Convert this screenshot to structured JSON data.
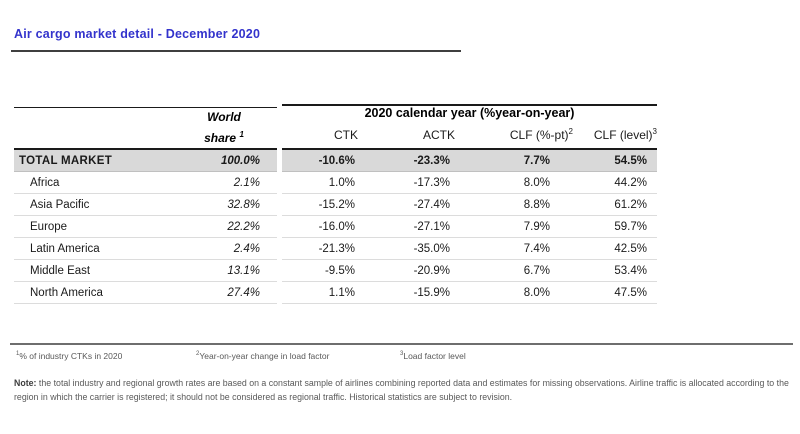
{
  "title": "Air cargo market detail - December 2020",
  "colors": {
    "title_blue": "#3333cc",
    "total_row_bg": "#d9d9d9"
  },
  "table": {
    "world_share_header": {
      "line1": "World",
      "line2": "share",
      "sup": "1"
    },
    "group_header": "2020 calendar year (%year-on-year)",
    "columns": [
      {
        "label": "CTK",
        "sup": ""
      },
      {
        "label": "ACTK",
        "sup": ""
      },
      {
        "label": "CLF (%-pt)",
        "sup": "2"
      },
      {
        "label": "CLF (level)",
        "sup": "3"
      }
    ],
    "rows": [
      {
        "label": "TOTAL MARKET",
        "world_share": "100.0%",
        "ctk": "-10.6%",
        "actk": "-23.3%",
        "clf_pt": "7.7%",
        "clf_level": "54.5%"
      },
      {
        "label": "Africa",
        "world_share": "2.1%",
        "ctk": "1.0%",
        "actk": "-17.3%",
        "clf_pt": "8.0%",
        "clf_level": "44.2%"
      },
      {
        "label": "Asia Pacific",
        "world_share": "32.8%",
        "ctk": "-15.2%",
        "actk": "-27.4%",
        "clf_pt": "8.8%",
        "clf_level": "61.2%"
      },
      {
        "label": "Europe",
        "world_share": "22.2%",
        "ctk": "-16.0%",
        "actk": "-27.1%",
        "clf_pt": "7.9%",
        "clf_level": "59.7%"
      },
      {
        "label": "Latin America",
        "world_share": "2.4%",
        "ctk": "-21.3%",
        "actk": "-35.0%",
        "clf_pt": "7.4%",
        "clf_level": "42.5%"
      },
      {
        "label": "Middle East",
        "world_share": "13.1%",
        "ctk": "-9.5%",
        "actk": "-20.9%",
        "clf_pt": "6.7%",
        "clf_level": "53.4%"
      },
      {
        "label": "North America",
        "world_share": "27.4%",
        "ctk": "1.1%",
        "actk": "-15.9%",
        "clf_pt": "8.0%",
        "clf_level": "47.5%"
      }
    ]
  },
  "footnotes": [
    {
      "sup": "1",
      "text": "% of industry CTKs in 2020"
    },
    {
      "sup": "2",
      "text": "Year-on-year change in load factor"
    },
    {
      "sup": "3",
      "text": "Load factor level"
    }
  ],
  "note": {
    "label": "Note:",
    "text": " the total industry and regional growth rates are based on a constant sample of airlines combining reported data and estimates for missing observations. Airline traffic is allocated according to the region in which the carrier is registered; it should not be considered as regional traffic. Historical statistics are subject to revision."
  }
}
